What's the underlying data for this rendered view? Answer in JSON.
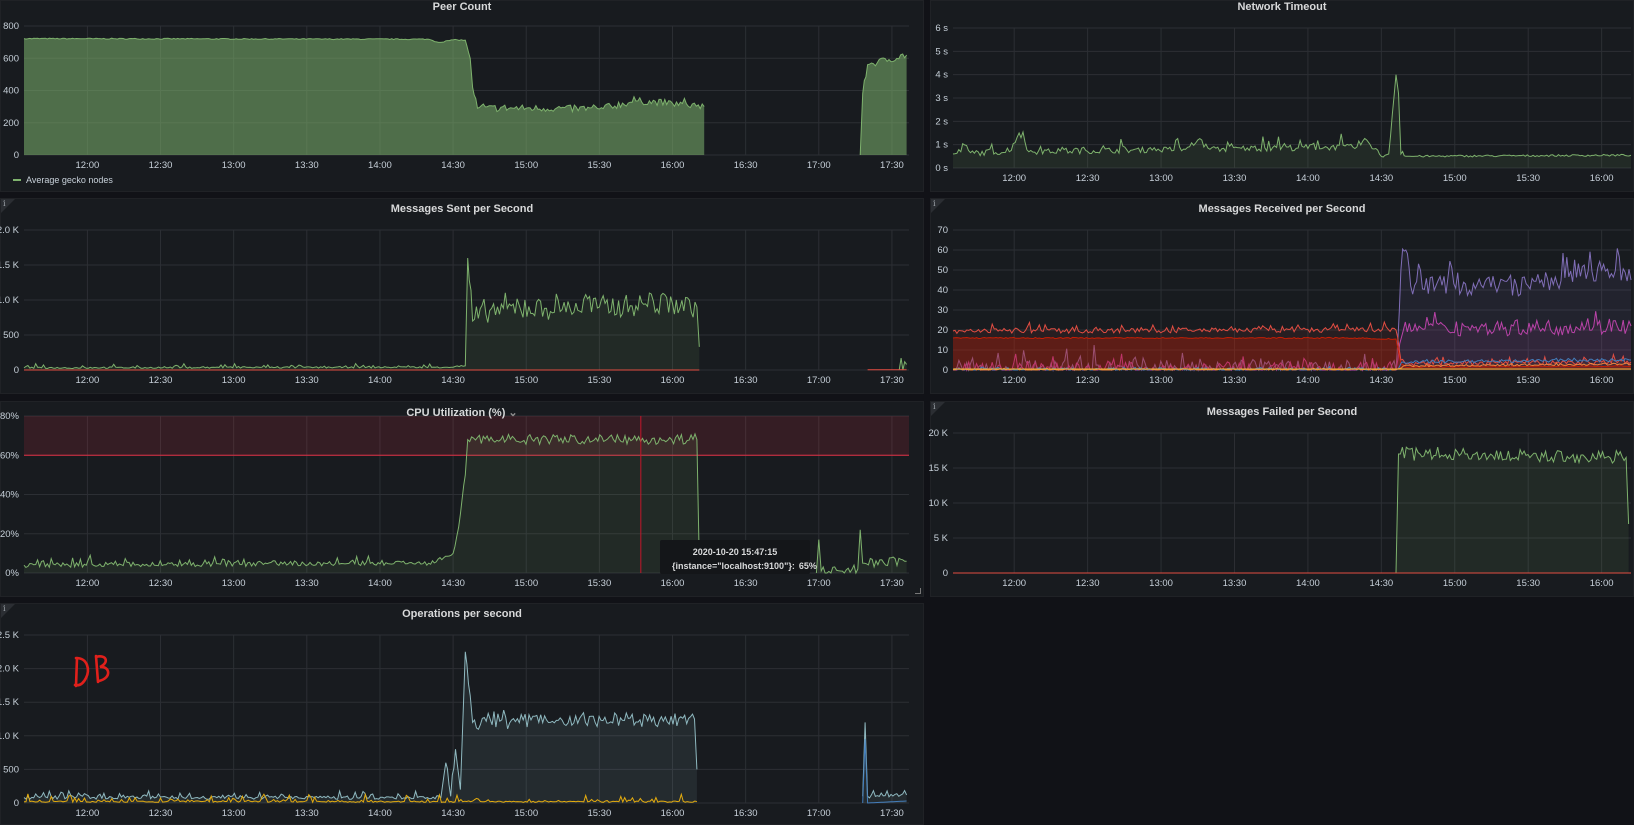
{
  "chart_data": [
    {
      "type": "area",
      "title": "Peer Count",
      "xlim": [
        "11:34",
        "17:37"
      ],
      "xticks": [
        "12:00",
        "12:30",
        "13:00",
        "13:30",
        "14:00",
        "14:30",
        "15:00",
        "15:30",
        "16:00",
        "16:30",
        "17:00",
        "17:30"
      ],
      "ylim": [
        0,
        800
      ],
      "yticks": [
        0,
        200,
        400,
        600,
        800
      ],
      "ytick_labels": [
        "0",
        "200",
        "400",
        "600",
        "800"
      ],
      "legend": "bottom-left",
      "grid": true,
      "series": [
        {
          "name": "Average gecko nodes",
          "color": "#7eb26d",
          "fill": 0.55,
          "points": [
            [
              "11:34",
              722
            ],
            [
              "14:20",
              718
            ],
            [
              "14:24",
              698
            ],
            [
              "14:30",
              714
            ],
            [
              "14:35",
              712
            ],
            [
              "14:37",
              600
            ],
            [
              "14:38",
              420
            ],
            [
              "14:40",
              290
            ],
            [
              "15:00",
              290
            ],
            [
              "15:30",
              285
            ],
            [
              "15:45",
              335
            ],
            [
              "16:00",
              320
            ],
            [
              "16:13",
              300
            ],
            null,
            [
              "17:17",
              0
            ],
            [
              "17:18",
              380
            ],
            [
              "17:20",
              560
            ],
            [
              "17:36",
              620
            ]
          ]
        }
      ]
    },
    {
      "type": "area",
      "title": "Network Timeout",
      "xlim": [
        "11:35",
        "16:12"
      ],
      "xticks": [
        "12:00",
        "12:30",
        "13:00",
        "13:30",
        "14:00",
        "14:30",
        "15:00",
        "15:30",
        "16:00"
      ],
      "ylim": [
        0,
        6
      ],
      "yticks": [
        0,
        1,
        2,
        3,
        4,
        5,
        6
      ],
      "ytick_labels": [
        "0 s",
        "1 s",
        "2 s",
        "3 s",
        "4 s",
        "5 s",
        "6 s"
      ],
      "grid": true,
      "series": [
        {
          "color": "#7eb26d",
          "fill": 0.1,
          "points": [
            [
              "11:35",
              0.6
            ],
            [
              "11:58",
              0.7
            ],
            [
              "12:02",
              1.5
            ],
            [
              "12:06",
              0.7
            ],
            [
              "13:10",
              0.8
            ],
            [
              "13:15",
              1.2
            ],
            [
              "13:20",
              0.8
            ],
            [
              "14:20",
              0.9
            ],
            [
              "14:24",
              1.2
            ],
            [
              "14:30",
              0.5
            ],
            [
              "14:33",
              0.6
            ],
            [
              "14:36",
              4.0
            ],
            [
              "14:37",
              3.2
            ],
            [
              "14:38",
              0.6
            ],
            [
              "14:40",
              0.5
            ],
            [
              "16:12",
              0.55
            ]
          ]
        }
      ]
    },
    {
      "type": "area",
      "title": "Messages Sent per Second",
      "xlim": [
        "11:34",
        "17:37"
      ],
      "xticks": [
        "12:00",
        "12:30",
        "13:00",
        "13:30",
        "14:00",
        "14:30",
        "15:00",
        "15:30",
        "16:00",
        "16:30",
        "17:00",
        "17:30"
      ],
      "ylim": [
        0,
        2000
      ],
      "yticks": [
        0,
        500,
        1000,
        1500,
        2000
      ],
      "ytick_labels": [
        "0",
        "500",
        "1.0 K",
        "1.5 K",
        "2.0 K"
      ],
      "grid": true,
      "series": [
        {
          "color": "#7eb26d",
          "fill": 0.1,
          "points": [
            [
              "11:34",
              30
            ],
            [
              "14:30",
              40
            ],
            [
              "14:35",
              60
            ],
            [
              "14:36",
              1600
            ],
            [
              "14:38",
              700
            ],
            [
              "14:45",
              850
            ],
            [
              "15:30",
              900
            ],
            [
              "16:00",
              950
            ],
            [
              "16:10",
              900
            ],
            [
              "16:11",
              330
            ],
            null,
            [
              "17:33",
              0
            ],
            [
              "17:36",
              80
            ]
          ]
        },
        {
          "color": "#e24d42",
          "fill": 0,
          "points": [
            [
              "11:34",
              0
            ],
            [
              "16:11",
              0
            ],
            null,
            [
              "17:20",
              5
            ],
            [
              "17:36",
              5
            ]
          ]
        }
      ]
    },
    {
      "type": "area",
      "title": "Messages Received per Second",
      "xlim": [
        "11:35",
        "16:12"
      ],
      "xticks": [
        "12:00",
        "12:30",
        "13:00",
        "13:30",
        "14:00",
        "14:30",
        "15:00",
        "15:30",
        "16:00"
      ],
      "ylim": [
        0,
        70
      ],
      "yticks": [
        0,
        10,
        20,
        30,
        40,
        50,
        60,
        70
      ],
      "ytick_labels": [
        "0",
        "10",
        "20",
        "30",
        "40",
        "50",
        "60",
        "70"
      ],
      "grid": true,
      "series": [
        {
          "color": "#806eb7",
          "fill": 0.1,
          "points": [
            [
              "11:35",
              0
            ],
            [
              "14:36",
              0
            ],
            [
              "14:38",
              50
            ],
            [
              "14:40",
              60
            ],
            [
              "14:42",
              42
            ],
            [
              "15:30",
              42
            ],
            [
              "16:00",
              50
            ],
            [
              "16:12",
              45
            ]
          ]
        },
        {
          "color": "#ba43a9",
          "fill": 0.1,
          "points": [
            [
              "11:35",
              0
            ],
            [
              "14:36",
              0
            ],
            [
              "14:39",
              20
            ],
            [
              "16:12",
              22
            ]
          ]
        },
        {
          "color": "#bf1b00",
          "fill": 0.35,
          "points": [
            [
              "11:35",
              16
            ],
            [
              "14:24",
              16
            ],
            [
              "14:26",
              15.5
            ],
            [
              "14:36",
              15.5
            ],
            [
              "14:38",
              3
            ],
            [
              "14:40",
              1.5
            ],
            [
              "16:12",
              2
            ]
          ]
        },
        {
          "color": "#e24d42",
          "fill": 0.08,
          "points": [
            [
              "11:35",
              19.5
            ],
            [
              "14:36",
              20
            ],
            [
              "14:38",
              5
            ],
            [
              "14:40",
              3
            ],
            [
              "16:12",
              4
            ]
          ]
        },
        {
          "color": "#447ebc",
          "fill": 0,
          "points": [
            [
              "11:35",
              0.3
            ],
            [
              "14:36",
              0.3
            ],
            [
              "14:39",
              4
            ],
            [
              "16:12",
              5
            ]
          ]
        },
        {
          "color": "#ef843c",
          "fill": 0,
          "points": [
            [
              "11:35",
              0.2
            ],
            [
              "14:36",
              0.2
            ],
            [
              "14:39",
              2
            ],
            [
              "16:12",
              3
            ]
          ]
        },
        {
          "color": "#eab839",
          "fill": 0,
          "points": [
            [
              "11:35",
              0.5
            ],
            [
              "16:12",
              0.5
            ]
          ]
        }
      ]
    },
    {
      "type": "area",
      "title": "CPU Utilization (%)",
      "xlim": [
        "11:34",
        "17:37"
      ],
      "xticks": [
        "12:00",
        "12:30",
        "13:00",
        "13:30",
        "14:00",
        "14:30",
        "15:00",
        "15:30",
        "16:00",
        "16:30",
        "17:00",
        "17:30"
      ],
      "ylim": [
        0,
        80
      ],
      "yticks": [
        0,
        20,
        40,
        60,
        80
      ],
      "ytick_labels": [
        "0%",
        "20%",
        "40%",
        "60%",
        "80%"
      ],
      "grid": true,
      "threshold": {
        "value": 60,
        "color": "#e02f44"
      },
      "series": [
        {
          "color": "#7eb26d",
          "fill": 0.1,
          "points": [
            [
              "11:34",
              4
            ],
            [
              "14:20",
              5
            ],
            [
              "14:30",
              10
            ],
            [
              "14:33",
              30
            ],
            [
              "14:35",
              50
            ],
            [
              "14:36",
              68
            ],
            [
              "16:10",
              68
            ],
            [
              "16:11",
              5
            ],
            null,
            [
              "16:59",
              0
            ],
            [
              "17:00",
              17
            ],
            [
              "17:01",
              1
            ],
            [
              "17:16",
              2
            ],
            [
              "17:17",
              22
            ],
            [
              "17:18",
              5
            ],
            [
              "17:36",
              6
            ]
          ]
        }
      ]
    },
    {
      "type": "area",
      "title": "Messages Failed per Second",
      "xlim": [
        "11:35",
        "16:12"
      ],
      "xticks": [
        "12:00",
        "12:30",
        "13:00",
        "13:30",
        "14:00",
        "14:30",
        "15:00",
        "15:30",
        "16:00"
      ],
      "ylim": [
        0,
        20000
      ],
      "yticks": [
        0,
        5000,
        10000,
        15000,
        20000
      ],
      "ytick_labels": [
        "0",
        "5 K",
        "10 K",
        "15 K",
        "20 K"
      ],
      "grid": true,
      "series": [
        {
          "color": "#7eb26d",
          "fill": 0.1,
          "points": [
            [
              "11:35",
              0
            ],
            [
              "14:36",
              0
            ],
            [
              "14:37",
              17000
            ],
            [
              "16:10",
              16500
            ],
            [
              "16:11",
              7000
            ]
          ]
        },
        {
          "color": "#e24d42",
          "fill": 0,
          "points": [
            [
              "11:35",
              0
            ],
            [
              "16:12",
              0
            ]
          ]
        }
      ]
    },
    {
      "type": "area",
      "title": "Operations per second",
      "xlim": [
        "11:34",
        "17:37"
      ],
      "xticks": [
        "12:00",
        "12:30",
        "13:00",
        "13:30",
        "14:00",
        "14:30",
        "15:00",
        "15:30",
        "16:00",
        "16:30",
        "17:00",
        "17:30"
      ],
      "ylim": [
        0,
        2500
      ],
      "yticks": [
        0,
        500,
        1000,
        1500,
        2000,
        2500
      ],
      "ytick_labels": [
        "0",
        "500",
        "1.0 K",
        "1.5 K",
        "2.0 K",
        "2.5 K"
      ],
      "grid": true,
      "series": [
        {
          "color": "#8fb9c0",
          "fill": 0.1,
          "points": [
            [
              "11:34",
              80
            ],
            [
              "14:25",
              80
            ],
            [
              "14:27",
              600
            ],
            [
              "14:29",
              100
            ],
            [
              "14:31",
              800
            ],
            [
              "14:33",
              200
            ],
            [
              "14:35",
              2250
            ],
            [
              "14:37",
              1600
            ],
            [
              "14:38",
              1200
            ],
            [
              "16:09",
              1250
            ],
            [
              "16:10",
              500
            ],
            null,
            [
              "17:18",
              100
            ],
            [
              "17:19",
              1200
            ],
            [
              "17:20",
              100
            ],
            [
              "17:36",
              120
            ]
          ]
        },
        {
          "color": "#e5ac0e",
          "fill": 0,
          "points": [
            [
              "11:34",
              20
            ],
            [
              "16:10",
              20
            ]
          ]
        },
        {
          "color": "#447ebc",
          "fill": 0,
          "points": [
            [
              "17:18",
              0
            ],
            [
              "17:19",
              950
            ],
            [
              "17:20",
              0
            ],
            [
              "17:36",
              30
            ]
          ]
        }
      ]
    }
  ],
  "tooltip": {
    "time": "2020-10-20 15:47:15",
    "series": "{instance=\"localhost:9100\"}:",
    "value": "65%"
  },
  "info_icon": "i",
  "cpu_title_chevron": "⌄",
  "annotation": "DB"
}
